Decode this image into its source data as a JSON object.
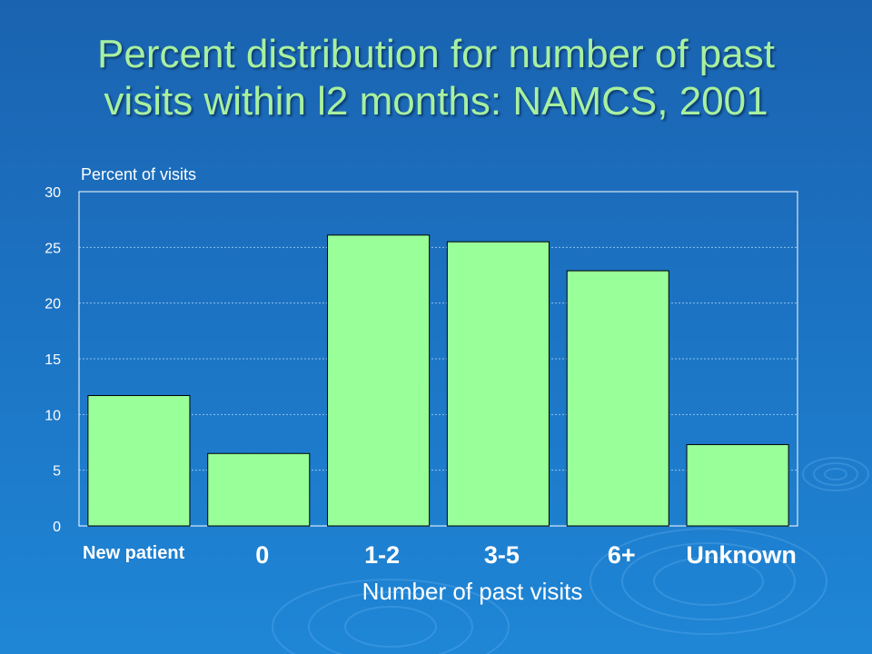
{
  "slide": {
    "title_line1": "Percent distribution for number of past",
    "title_line2": "visits within l2 months: NAMCS, 2001",
    "title_color": "#a8f0a0",
    "background_color": "#1c72c2"
  },
  "chart_data": {
    "type": "bar",
    "title": "",
    "ylabel": "Percent of visits",
    "xlabel": "Number of past visits",
    "categories": [
      "New patient",
      "0",
      "1-2",
      "3-5",
      "6+",
      "Unknown"
    ],
    "values": [
      11.7,
      6.5,
      26.1,
      25.5,
      22.9,
      7.3
    ],
    "ylim": [
      0,
      30
    ],
    "yticks": [
      0,
      5,
      10,
      15,
      20,
      25,
      30
    ],
    "grid": true,
    "bar_color": "#99ff99",
    "legend": "none"
  }
}
